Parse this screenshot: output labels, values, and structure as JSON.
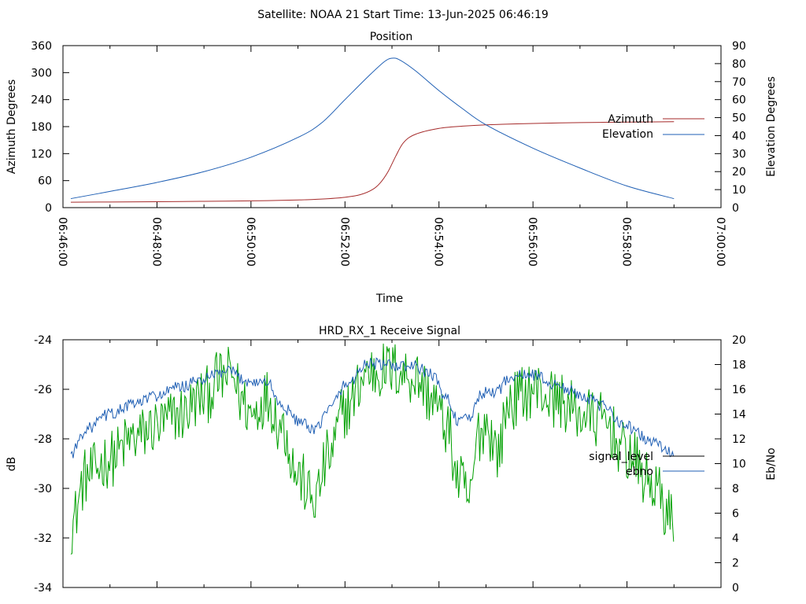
{
  "header": {
    "title": "Satellite: NOAA 21    Start Time: 13-Jun-2025 06:46:19"
  },
  "colors": {
    "azimuth": "#a52a2a",
    "elevation": "#1f5fb4",
    "signal_level": "#00a000",
    "ebno": "#1f5fb4",
    "axis": "#000000"
  },
  "chart_data": [
    {
      "type": "line",
      "title": "Position",
      "xlabel": "Time",
      "ylabel": "Azimuth Degrees",
      "y2label": "Elevation Degrees",
      "xlim": [
        "06:46:00",
        "07:00:00"
      ],
      "ylim": [
        0,
        360
      ],
      "y2lim": [
        0,
        90
      ],
      "x_ticks": [
        "06:46:00",
        "06:48:00",
        "06:50:00",
        "06:52:00",
        "06:54:00",
        "06:56:00",
        "06:58:00",
        "07:00:00"
      ],
      "y_ticks": [
        "0",
        "60",
        "120",
        "180",
        "240",
        "300",
        "360"
      ],
      "y2_ticks": [
        "0",
        "10",
        "20",
        "30",
        "40",
        "50",
        "60",
        "70",
        "80",
        "90"
      ],
      "legend_position": "right",
      "series": [
        {
          "name": "Azimuth",
          "axis": "left",
          "x": [
            "06:46:10",
            "06:47:00",
            "06:48:00",
            "06:49:00",
            "06:50:00",
            "06:51:00",
            "06:51:30",
            "06:52:00",
            "06:52:20",
            "06:52:35",
            "06:52:45",
            "06:52:55",
            "06:53:05",
            "06:53:15",
            "06:53:30",
            "06:54:00",
            "06:54:30",
            "06:55:00",
            "06:56:00",
            "06:57:00",
            "06:58:00",
            "06:59:00"
          ],
          "values": [
            12,
            12.5,
            13,
            14,
            15,
            17,
            19,
            23,
            29,
            40,
            55,
            80,
            115,
            145,
            163,
            176,
            181,
            184,
            187,
            189,
            190,
            191
          ]
        },
        {
          "name": "Elevation",
          "axis": "right",
          "x": [
            "06:46:10",
            "06:47:00",
            "06:48:00",
            "06:49:00",
            "06:50:00",
            "06:51:00",
            "06:51:30",
            "06:52:00",
            "06:52:30",
            "06:52:50",
            "06:53:00",
            "06:53:10",
            "06:53:30",
            "06:54:00",
            "06:54:30",
            "06:55:00",
            "06:56:00",
            "06:57:00",
            "06:58:00",
            "06:59:00"
          ],
          "values": [
            5,
            9,
            14,
            20,
            28,
            39,
            47,
            60,
            73,
            81,
            83,
            82,
            76,
            65,
            55,
            46,
            33,
            22,
            12,
            5
          ]
        }
      ]
    },
    {
      "type": "line",
      "title": "HRD_RX_1 Receive Signal",
      "ylabel": "dB",
      "y2label": "Eb/No",
      "xlim": [
        "06:46:00",
        "07:00:00"
      ],
      "ylim": [
        -34,
        -24
      ],
      "y2lim": [
        0,
        20
      ],
      "y_ticks": [
        "-34",
        "-32",
        "-30",
        "-28",
        "-26",
        "-24"
      ],
      "y2_ticks": [
        "0",
        "2",
        "4",
        "6",
        "8",
        "10",
        "12",
        "14",
        "16",
        "18",
        "20"
      ],
      "legend_position": "right",
      "series": [
        {
          "name": "signal_level",
          "axis": "left",
          "noise_db": 1.2,
          "x": [
            "06:46:10",
            "06:46:30",
            "06:47:00",
            "06:47:30",
            "06:48:00",
            "06:48:30",
            "06:49:00",
            "06:49:20",
            "06:49:35",
            "06:49:50",
            "06:50:00",
            "06:50:20",
            "06:50:40",
            "06:51:00",
            "06:51:20",
            "06:51:40",
            "06:52:00",
            "06:52:30",
            "06:53:00",
            "06:53:30",
            "06:53:50",
            "06:54:10",
            "06:54:25",
            "06:54:40",
            "06:54:50",
            "06:55:00",
            "06:55:15",
            "06:55:30",
            "06:56:00",
            "06:56:30",
            "06:57:00",
            "06:57:30",
            "06:58:00",
            "06:58:30",
            "06:59:00"
          ],
          "values": [
            -31.5,
            -29.5,
            -28.8,
            -28.0,
            -27.5,
            -27.0,
            -26.3,
            -25.6,
            -25.4,
            -26.5,
            -27.0,
            -26.3,
            -27.5,
            -29.5,
            -30.5,
            -28.7,
            -26.8,
            -25.3,
            -25.2,
            -25.5,
            -26.3,
            -27.5,
            -29.7,
            -30.5,
            -27.8,
            -27.4,
            -28.5,
            -26.5,
            -26.0,
            -26.4,
            -27.0,
            -27.3,
            -28.6,
            -29.8,
            -31.3
          ]
        },
        {
          "name": "ebno",
          "axis": "right",
          "noise_db": 0.5,
          "x": [
            "06:46:10",
            "06:46:30",
            "06:47:00",
            "06:47:30",
            "06:48:00",
            "06:48:30",
            "06:49:00",
            "06:49:20",
            "06:49:35",
            "06:49:50",
            "06:50:00",
            "06:50:20",
            "06:50:40",
            "06:51:00",
            "06:51:20",
            "06:51:40",
            "06:52:00",
            "06:52:30",
            "06:53:00",
            "06:53:30",
            "06:53:50",
            "06:54:10",
            "06:54:25",
            "06:54:40",
            "06:54:50",
            "06:55:00",
            "06:55:15",
            "06:55:30",
            "06:56:00",
            "06:56:30",
            "06:57:00",
            "06:57:30",
            "06:58:00",
            "06:58:30",
            "06:59:00"
          ],
          "values": [
            10.8,
            12.8,
            14.0,
            14.8,
            15.5,
            16.2,
            16.8,
            17.3,
            17.4,
            16.8,
            16.6,
            16.6,
            14.6,
            13.5,
            12.6,
            14.4,
            16.3,
            18.1,
            17.9,
            17.8,
            17.2,
            15.3,
            13.4,
            13.6,
            15.4,
            15.7,
            15.9,
            17.0,
            17.2,
            16.3,
            15.6,
            14.6,
            13.0,
            11.8,
            10.8
          ]
        }
      ]
    }
  ]
}
